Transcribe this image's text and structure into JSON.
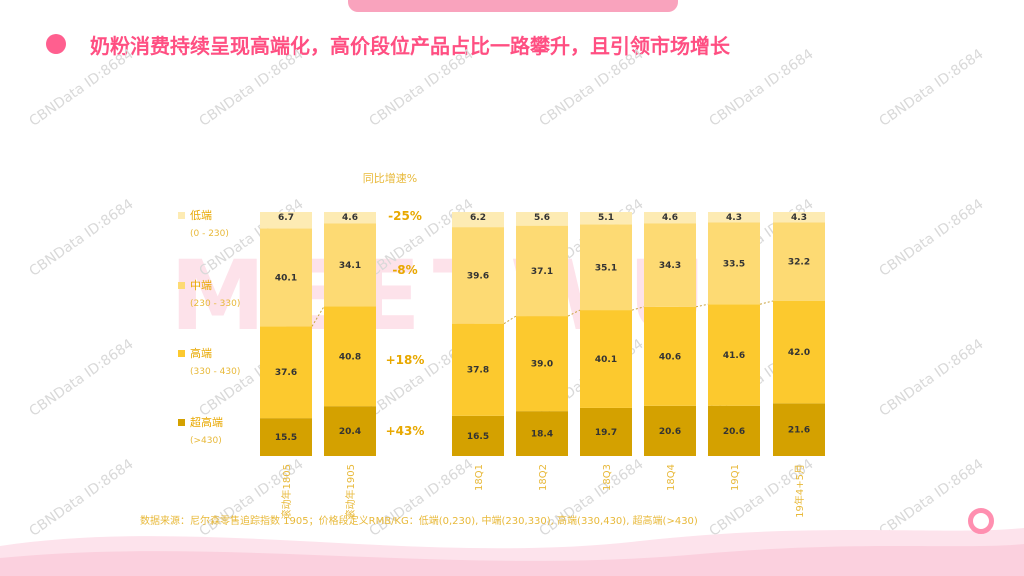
{
  "title": "奶粉消费持续呈现高端化，高价段位产品占比一路攀升，且引领市场增长",
  "background_word": "MEETWU",
  "watermark_text": "CBNData ID:8684",
  "source": "数据来源：尼尔森零售追踪指数 1905；价格段定义RMB/KG：低端(0,230), 中端(230,330), 高端(330,430), 超高端(>430)",
  "chart_data": {
    "type": "bar",
    "stacked": true,
    "percent_stacked": true,
    "categories": [
      "滚动年1805",
      "滚动年1905",
      "18Q1",
      "18Q2",
      "18Q3",
      "18Q4",
      "19Q1",
      "19年4+5月"
    ],
    "series": [
      {
        "name": "超高端",
        "range": "(>430)",
        "color": "#d4a100",
        "values": [
          15.5,
          20.4,
          16.5,
          18.4,
          19.7,
          20.6,
          20.6,
          21.6
        ]
      },
      {
        "name": "高端",
        "range": "(330 - 430)",
        "color": "#fcc92e",
        "values": [
          37.6,
          40.8,
          37.8,
          39.0,
          40.1,
          40.6,
          41.6,
          42.0
        ]
      },
      {
        "name": "中端",
        "range": "(230 - 330)",
        "color": "#fdda73",
        "values": [
          40.1,
          34.1,
          39.6,
          37.1,
          35.1,
          34.3,
          33.5,
          32.2
        ]
      },
      {
        "name": "低端",
        "range": "(0 - 230)",
        "color": "#fdebb3",
        "values": [
          6.7,
          4.6,
          6.2,
          5.6,
          5.1,
          4.6,
          4.3,
          4.3
        ]
      }
    ],
    "growth_header": "同比增速%",
    "growth": [
      {
        "series": "低端",
        "label": "-25%"
      },
      {
        "series": "中端",
        "label": "-8%"
      },
      {
        "series": "高端",
        "label": "+18%"
      },
      {
        "series": "超高端",
        "label": "+43%"
      }
    ],
    "legend_position": "left"
  }
}
